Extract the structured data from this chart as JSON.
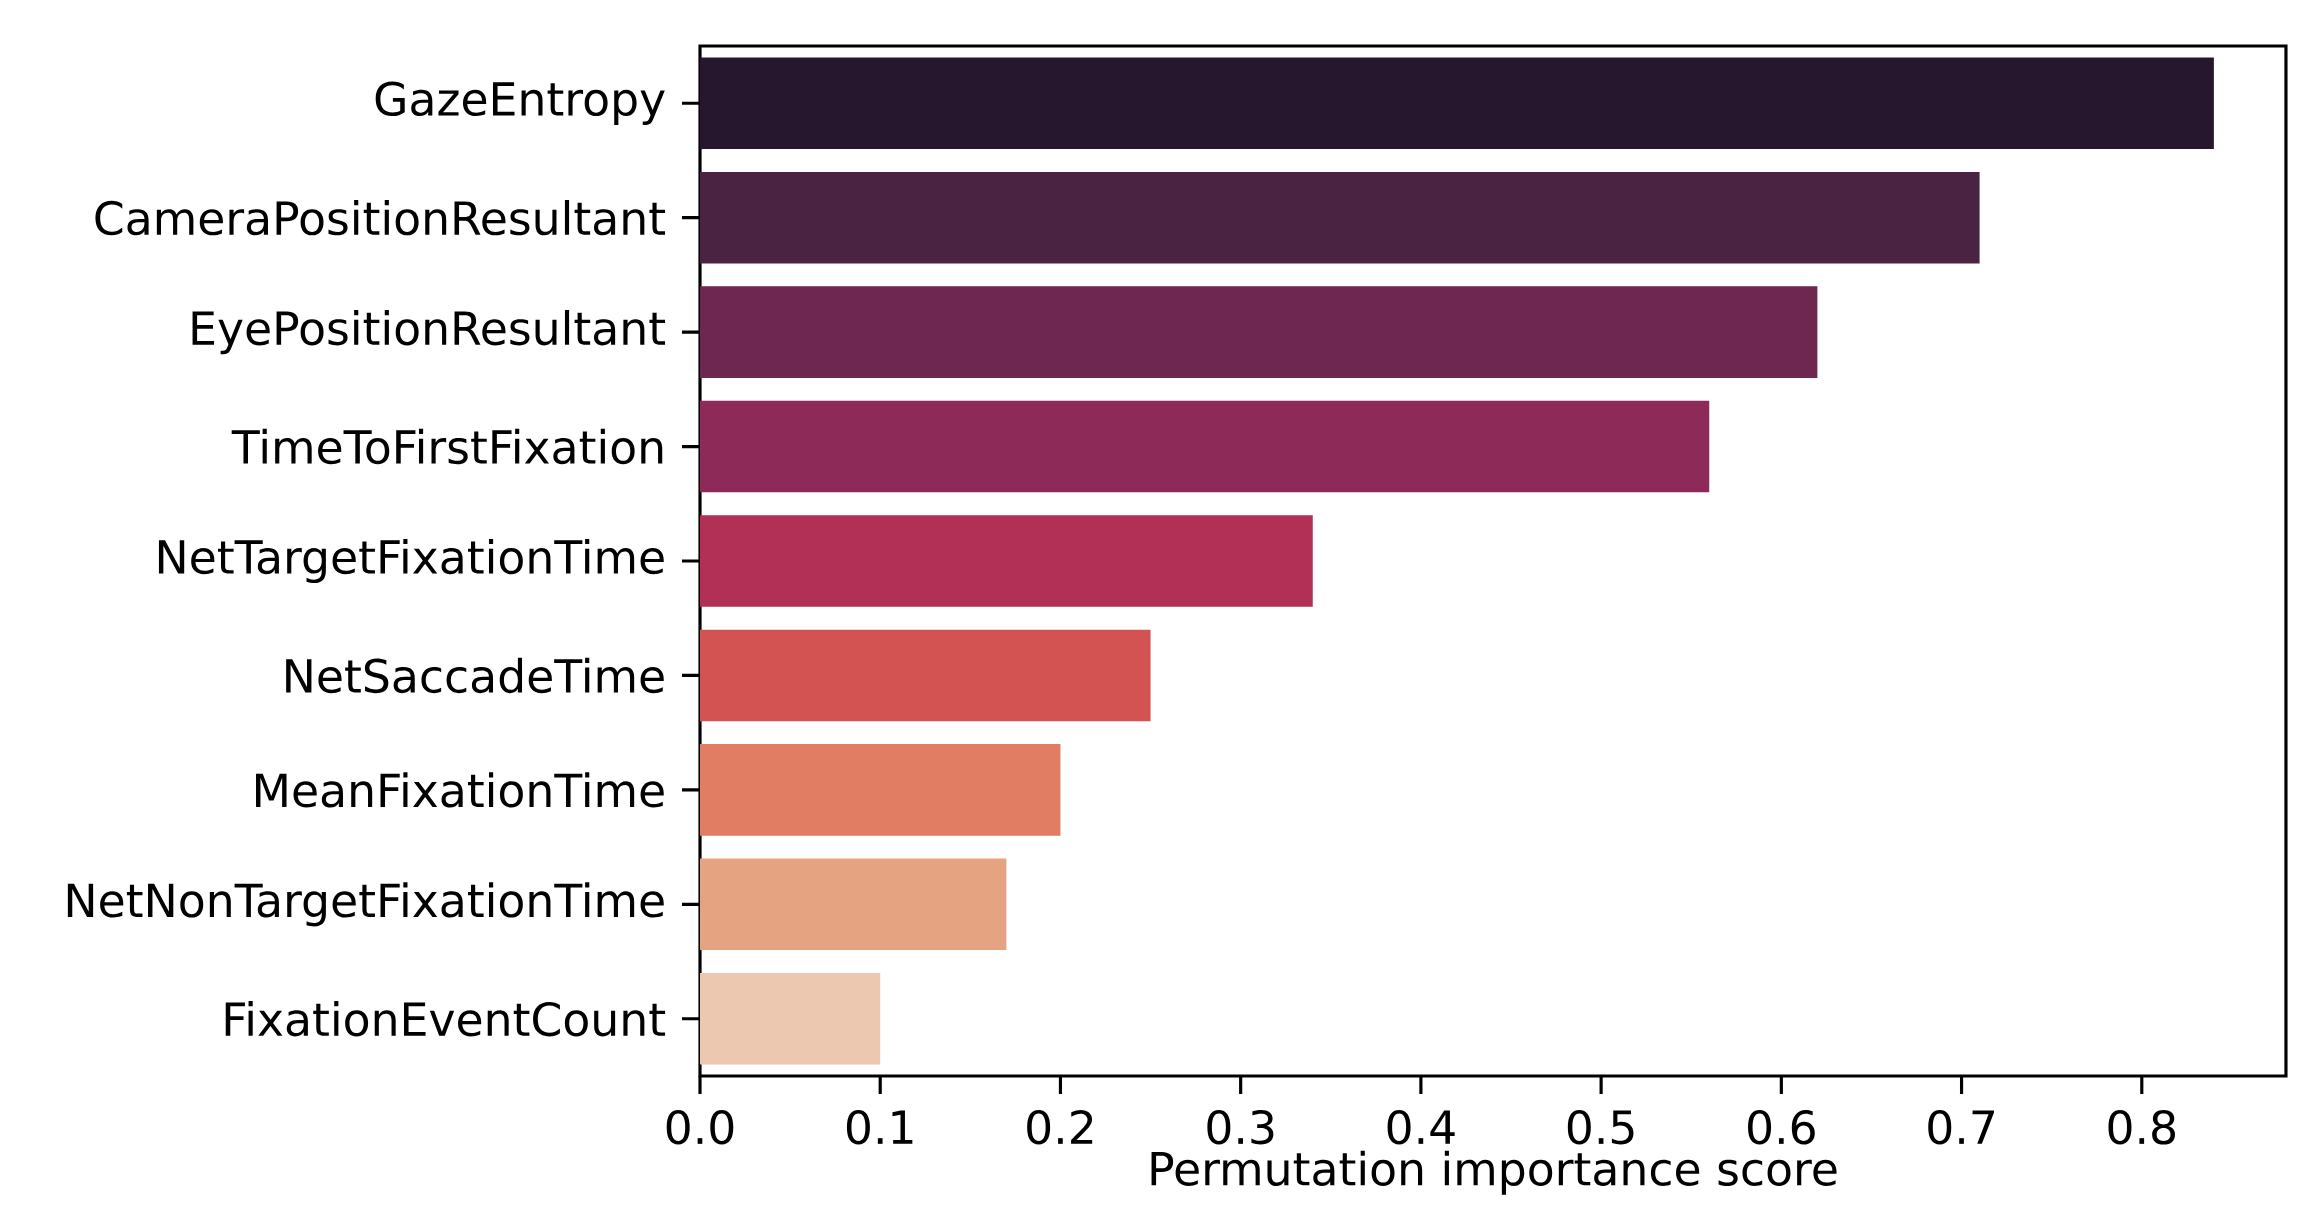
{
  "chart_data": {
    "type": "bar",
    "orientation": "horizontal",
    "xlabel": "Permutation importance score",
    "categories": [
      "GazeEntropy",
      "CameraPositionResultant",
      "EyePositionResultant",
      "TimeToFirstFixation",
      "NetTargetFixationTime",
      "NetSaccadeTime",
      "MeanFixationTime",
      "NetNonTargetFixationTime",
      "FixationEventCount"
    ],
    "values": [
      0.84,
      0.71,
      0.62,
      0.56,
      0.34,
      0.25,
      0.2,
      0.17,
      0.1
    ],
    "colors": [
      "#26172f",
      "#4a2343",
      "#6d2750",
      "#8e2a57",
      "#b22f55",
      "#d35353",
      "#e07d62",
      "#e5a382",
      "#edc8b0"
    ],
    "xlim": [
      0,
      0.88
    ],
    "xticks": [
      {
        "value": 0,
        "label": "0.0"
      },
      0.1,
      0.2,
      0.3,
      0.4,
      0.5,
      0.6,
      0.7,
      0.8
    ],
    "grid": false
  }
}
